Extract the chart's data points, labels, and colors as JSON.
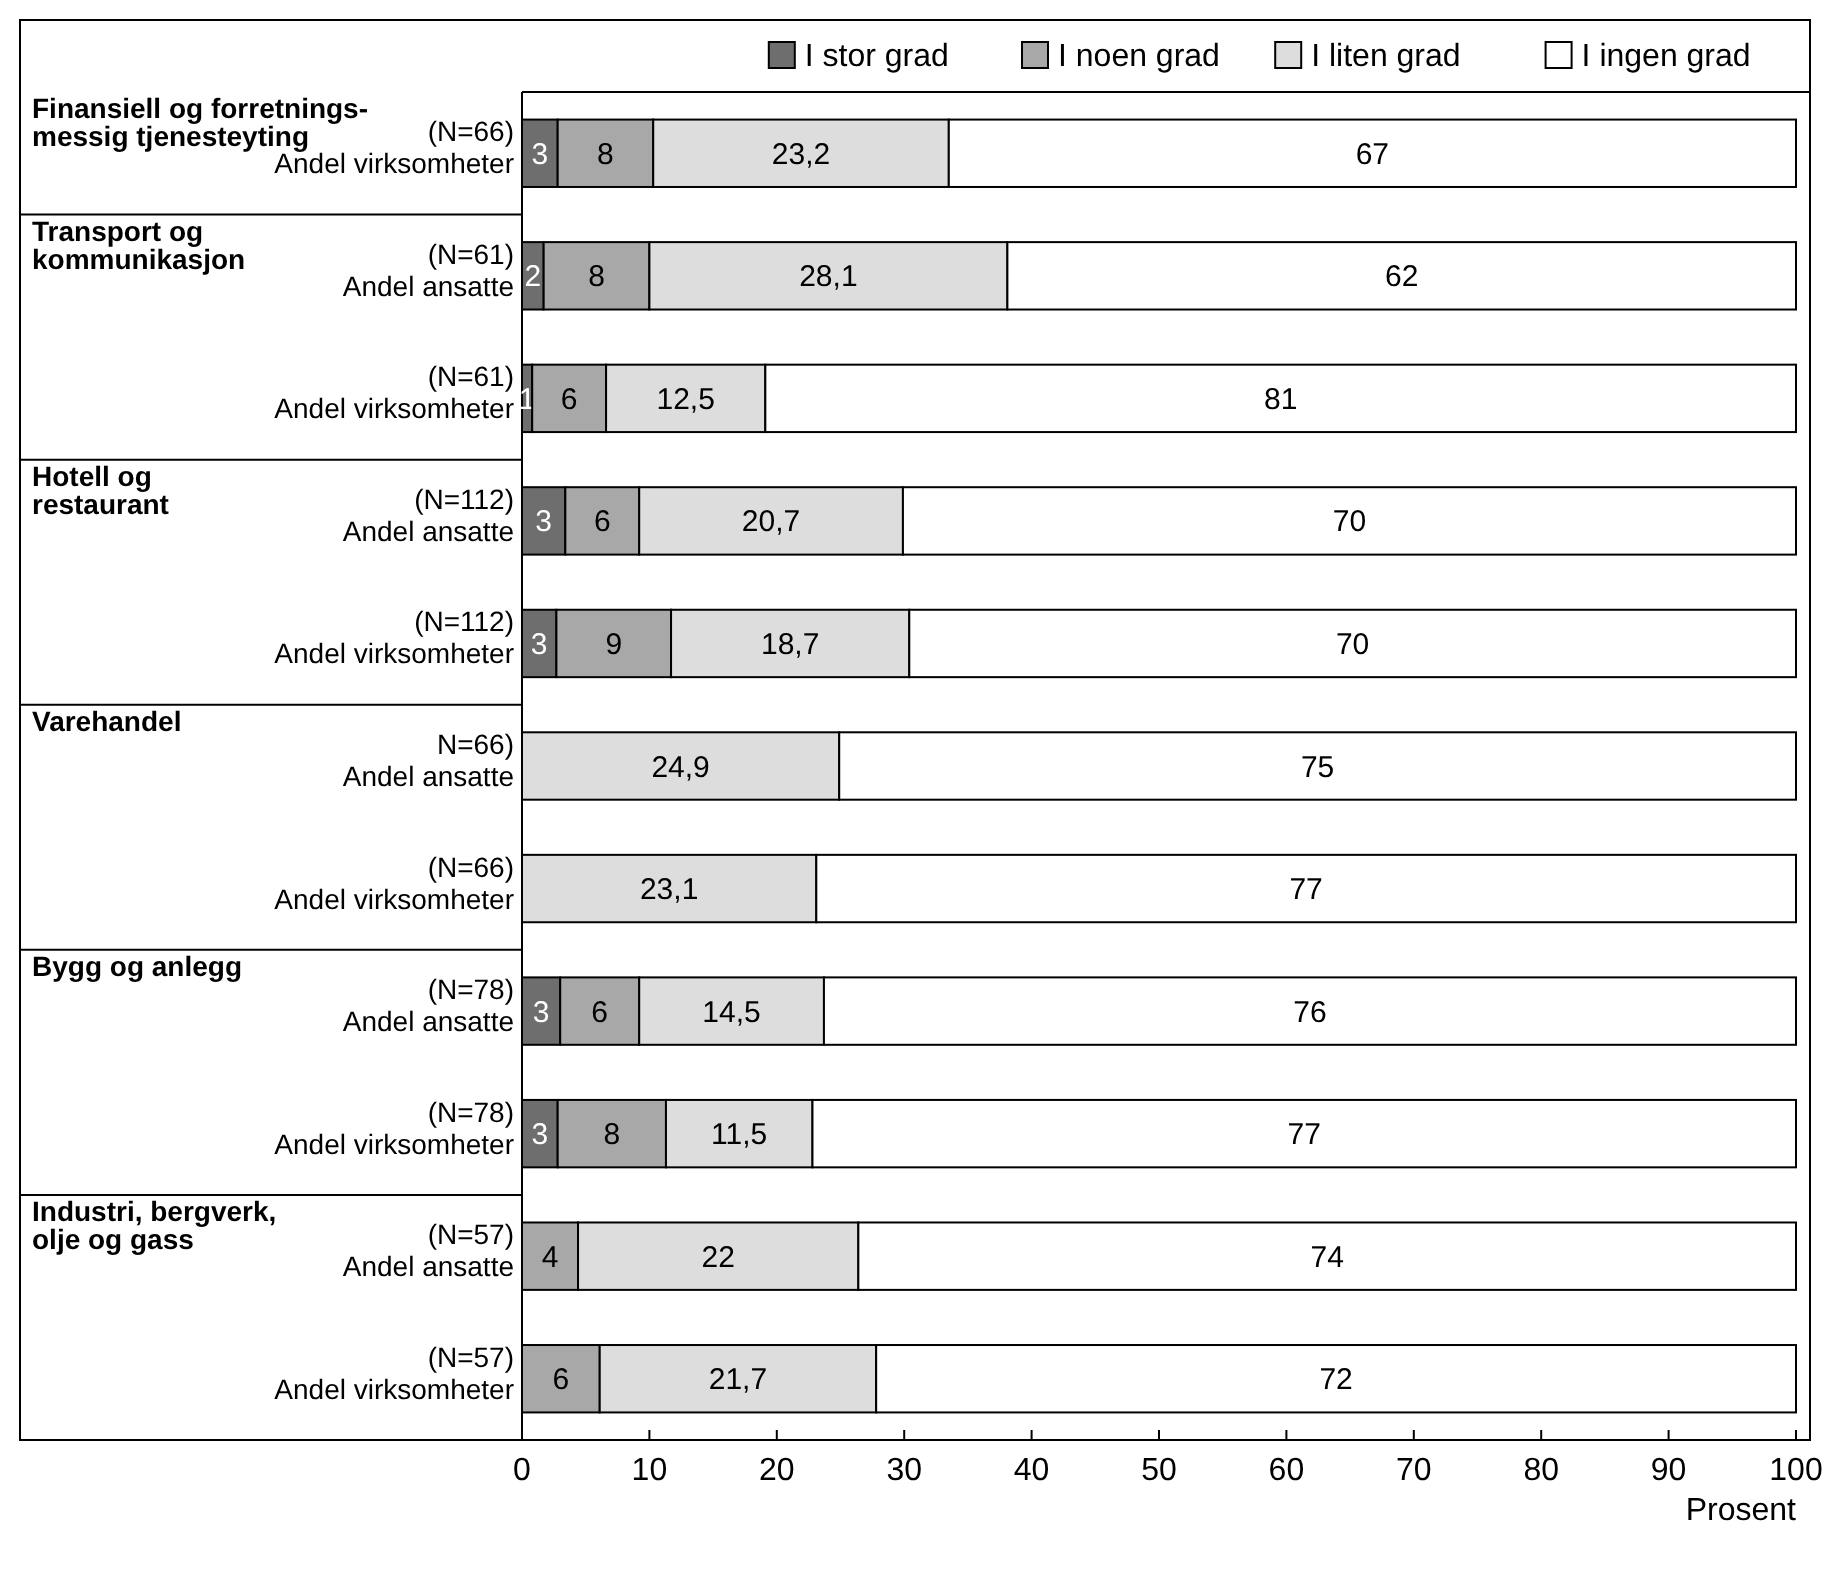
{
  "chart_data": {
    "type": "bar",
    "orientation": "horizontal",
    "stacked": true,
    "legend": "top right",
    "data_labels": false,
    "xlabel": "Prosent",
    "categories": [
      "Finansiell og forretnings-\nmessig tjenesteyting\n(N=66)\nAndel virksomheter",
      "Transport og\nkommunikasjon\n(N=61)\nAndel ansatte",
      "(N=61)\nAndel virksomheter",
      "Hotell og\nrestaurant\n(N=112)\nAndel ansatte",
      "(N=112)\nAndel virksomheter",
      "Varehandel\nN=66)\nAndel ansatte",
      "(N=66)\nAndel virksomheter",
      "Bygg og anlegg\n(N=78)\nAndel ansatte",
      "(N=78)\nAndel virksomheter",
      "Industri, bergverk,\nolje og gass\n(N=57)\nAndel ansatte",
      "(N=57)\nAndel virksomheter"
    ],
    "xlim": [
      0,
      100
    ],
    "xticks": [
      0,
      10,
      20,
      30,
      40,
      50,
      60,
      70,
      80,
      90,
      100
    ],
    "series": [
      {
        "name": "I stor grad",
        "color": "#6e6e6e",
        "values": [
          2.8,
          1.7,
          0.8,
          3.4,
          2.7,
          null,
          null,
          3.0,
          2.8,
          null,
          null
        ],
        "value_labels": [
          "3",
          "2",
          "1",
          "3",
          "3",
          null,
          null,
          "3",
          "3",
          null,
          null
        ]
      },
      {
        "name": "I noen grad",
        "color": "#a8a8a8",
        "values": [
          7.5,
          8.3,
          5.8,
          5.8,
          9.0,
          null,
          null,
          6.2,
          8.5,
          4.4,
          6.1
        ],
        "value_labels": [
          "8",
          "8",
          "6",
          "6",
          "9",
          null,
          null,
          "6",
          "8",
          "4",
          "6"
        ]
      },
      {
        "name": "I liten grad",
        "color": "#dddddd",
        "values": [
          23.2,
          28.1,
          12.5,
          20.7,
          18.7,
          24.9,
          23.1,
          14.5,
          11.5,
          22.0,
          21.7
        ],
        "value_labels": [
          "23,2",
          "28,1",
          "12,5",
          "20,7",
          "18,7",
          "24,9",
          "23,1",
          "14,5",
          "11,5",
          "22",
          "21,7"
        ]
      },
      {
        "name": "I ingen grad",
        "color": "#ffffff",
        "values": [
          66.5,
          61.9,
          80.9,
          70.1,
          69.6,
          75.1,
          76.9,
          76.3,
          77.2,
          73.6,
          72.2
        ],
        "value_labels": [
          "67",
          "62",
          "81",
          "70",
          "70",
          "75",
          "77",
          "76",
          "77",
          "74",
          "72"
        ]
      }
    ]
  }
}
